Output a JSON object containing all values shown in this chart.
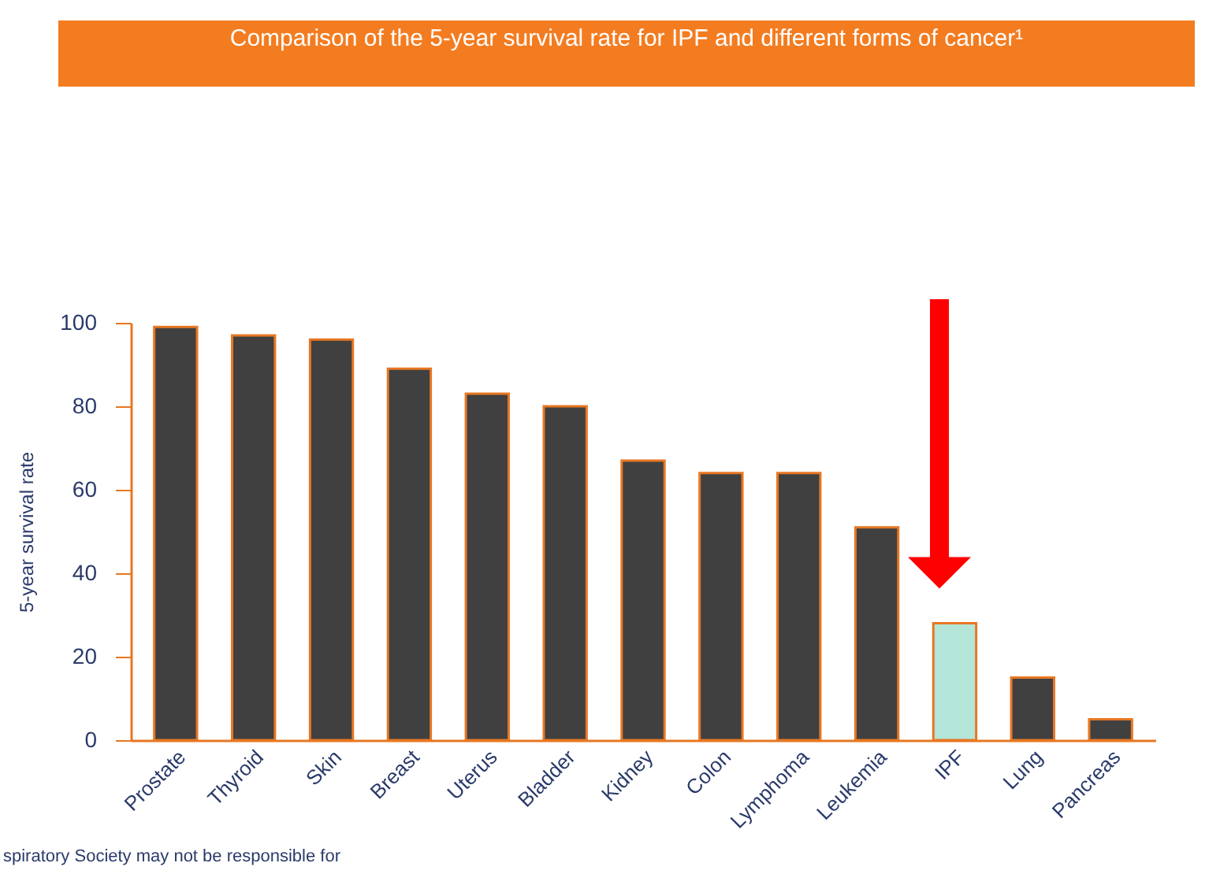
{
  "chart_data": {
    "type": "bar",
    "title": "Comparison of the 5-year survival rate for IPF and different forms of cancer¹",
    "ylabel": "5-year survival rate",
    "categories": [
      "Prostate",
      "Thyroid",
      "Skin",
      "Breast",
      "Uterus",
      "Bladder",
      "Kidney",
      "Colon",
      "Lymphoma",
      "Leukemia",
      "IPF",
      "Lung",
      "Pancreas"
    ],
    "values": [
      99,
      97,
      96,
      89,
      83,
      80,
      67,
      64,
      64,
      51,
      28,
      15,
      5
    ],
    "colors": [
      "#404040",
      "#404040",
      "#404040",
      "#404040",
      "#404040",
      "#404040",
      "#404040",
      "#404040",
      "#404040",
      "#404040",
      "#b3e6d8",
      "#404040",
      "#404040"
    ],
    "ylim": [
      0,
      100
    ],
    "yticks": [
      0,
      20,
      40,
      60,
      80,
      100
    ],
    "grid": false,
    "annotations": [
      "spiratory Society may not be responsible for"
    ]
  }
}
